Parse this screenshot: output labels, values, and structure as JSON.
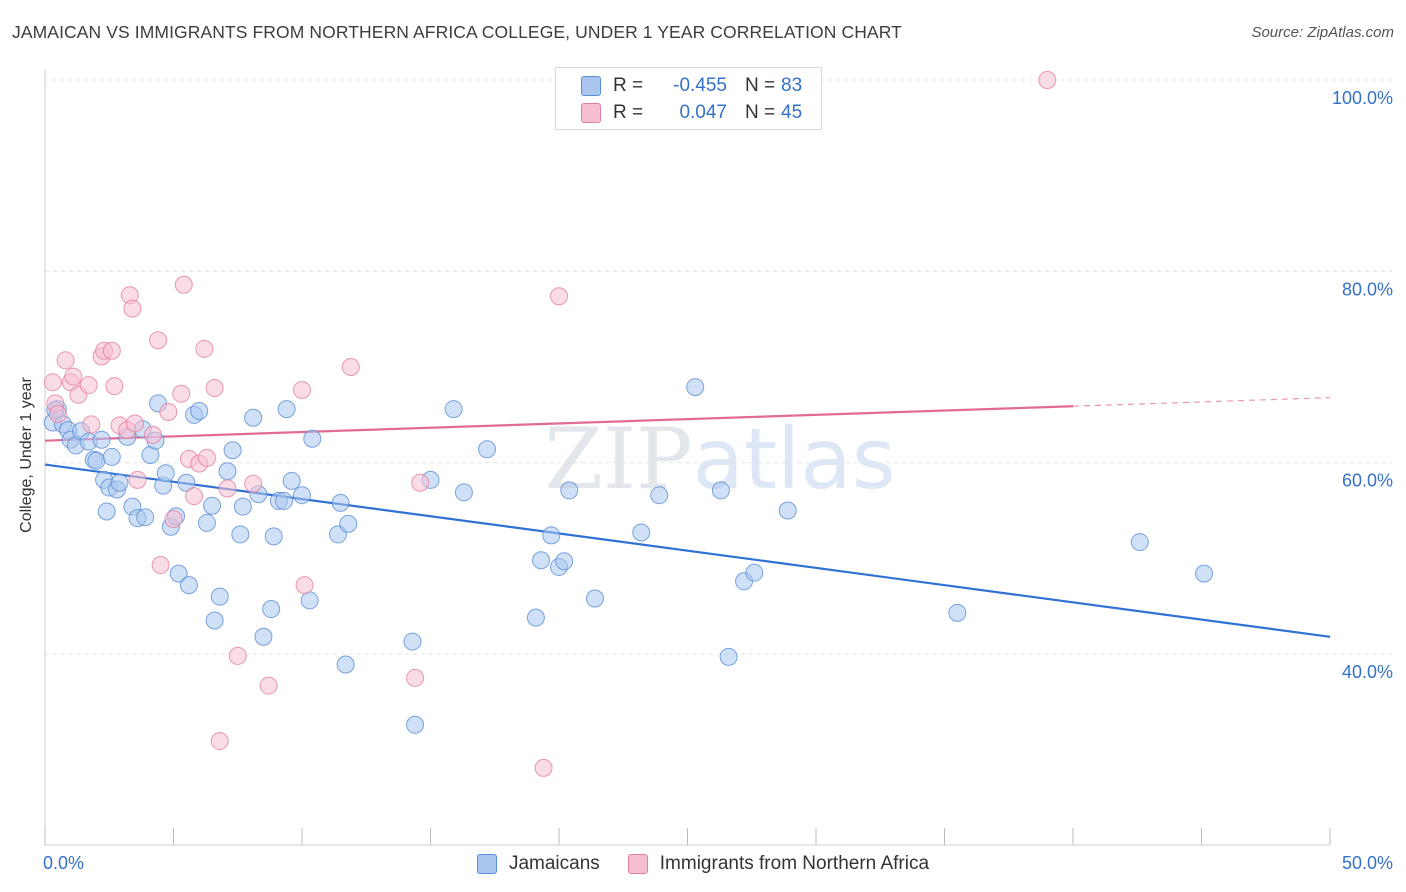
{
  "chart_data": {
    "type": "scatter",
    "title": "JAMAICAN VS IMMIGRANTS FROM NORTHERN AFRICA COLLEGE, UNDER 1 YEAR CORRELATION CHART",
    "source": "Source: ZipAtlas.com",
    "xlabel": "",
    "ylabel": "College, Under 1 year",
    "xlim": [
      0,
      50
    ],
    "ylim": [
      20,
      102
    ],
    "x_tick_labels": [
      "0.0%",
      "50.0%"
    ],
    "y_ticks": [
      40,
      60,
      80,
      100
    ],
    "y_tick_labels": [
      "40.0%",
      "60.0%",
      "80.0%",
      "100.0%"
    ],
    "watermark": "ZIPatlas",
    "legend_stats": [
      {
        "r_label": "R =",
        "r_value": "-0.455",
        "n_label": "N =",
        "n_value": "83"
      },
      {
        "r_label": "R =",
        "r_value": "0.047",
        "n_label": "N =",
        "n_value": "45"
      }
    ],
    "series": [
      {
        "name": "Jamaicans",
        "fill": "#aac6ef",
        "stroke": "#5b8fd6",
        "line_color": "#2f72d4",
        "trend": {
          "x0": 0,
          "y0": 59.8,
          "x1": 50,
          "y1": 41.8
        },
        "points": [
          [
            0.3,
            64.2
          ],
          [
            0.5,
            65.6
          ],
          [
            0.7,
            64.0
          ],
          [
            0.9,
            63.4
          ],
          [
            1.0,
            62.4
          ],
          [
            1.2,
            61.8
          ],
          [
            1.4,
            63.3
          ],
          [
            1.7,
            62.2
          ],
          [
            1.9,
            60.3
          ],
          [
            2.0,
            60.2
          ],
          [
            2.2,
            62.4
          ],
          [
            2.3,
            58.2
          ],
          [
            2.4,
            54.9
          ],
          [
            2.5,
            57.4
          ],
          [
            2.6,
            60.6
          ],
          [
            2.8,
            57.2
          ],
          [
            2.9,
            57.9
          ],
          [
            3.2,
            62.7
          ],
          [
            3.4,
            55.4
          ],
          [
            3.6,
            54.2
          ],
          [
            3.8,
            63.5
          ],
          [
            3.9,
            54.3
          ],
          [
            4.1,
            60.8
          ],
          [
            4.3,
            62.3
          ],
          [
            4.4,
            66.2
          ],
          [
            4.6,
            57.6
          ],
          [
            4.7,
            58.9
          ],
          [
            4.9,
            53.3
          ],
          [
            5.1,
            54.4
          ],
          [
            5.2,
            48.4
          ],
          [
            5.5,
            57.9
          ],
          [
            5.6,
            47.2
          ],
          [
            5.8,
            65.0
          ],
          [
            6.0,
            65.4
          ],
          [
            6.3,
            53.7
          ],
          [
            6.5,
            55.5
          ],
          [
            6.6,
            43.5
          ],
          [
            6.8,
            46.0
          ],
          [
            7.1,
            59.1
          ],
          [
            7.3,
            61.3
          ],
          [
            7.6,
            52.5
          ],
          [
            7.7,
            55.4
          ],
          [
            8.1,
            64.7
          ],
          [
            8.3,
            56.7
          ],
          [
            8.5,
            41.8
          ],
          [
            8.8,
            44.7
          ],
          [
            8.9,
            52.3
          ],
          [
            9.1,
            56.0
          ],
          [
            9.3,
            56.0
          ],
          [
            9.4,
            65.6
          ],
          [
            9.6,
            58.1
          ],
          [
            10.0,
            56.6
          ],
          [
            10.3,
            45.6
          ],
          [
            10.4,
            62.5
          ],
          [
            11.4,
            52.5
          ],
          [
            11.5,
            55.8
          ],
          [
            11.8,
            53.6
          ],
          [
            11.7,
            38.9
          ],
          [
            14.3,
            41.3
          ],
          [
            14.4,
            32.6
          ],
          [
            15.0,
            58.2
          ],
          [
            15.9,
            65.6
          ],
          [
            16.3,
            56.9
          ],
          [
            17.2,
            61.4
          ],
          [
            19.1,
            43.8
          ],
          [
            19.3,
            49.8
          ],
          [
            19.7,
            52.4
          ],
          [
            20.0,
            49.1
          ],
          [
            20.2,
            49.7
          ],
          [
            20.4,
            57.1
          ],
          [
            21.4,
            45.8
          ],
          [
            23.2,
            52.7
          ],
          [
            23.9,
            56.6
          ],
          [
            25.3,
            67.9
          ],
          [
            26.3,
            57.1
          ],
          [
            26.6,
            39.7
          ],
          [
            27.2,
            47.6
          ],
          [
            27.6,
            48.5
          ],
          [
            28.9,
            55.0
          ],
          [
            35.5,
            44.3
          ],
          [
            42.6,
            51.7
          ],
          [
            45.1,
            48.4
          ],
          [
            0.4,
            65.5
          ]
        ]
      },
      {
        "name": "Immigrants from Northern Africa",
        "fill": "#f6bfd1",
        "stroke": "#e37fa2",
        "line_color": "#e26b96",
        "trend": {
          "x0": 0,
          "y0": 62.3,
          "x1": 40,
          "y1": 65.9
        },
        "trend_dashed_to": {
          "x": 50,
          "y": 66.8
        },
        "points": [
          [
            0.3,
            68.4
          ],
          [
            0.4,
            66.2
          ],
          [
            0.5,
            65.1
          ],
          [
            0.8,
            70.7
          ],
          [
            1.0,
            68.4
          ],
          [
            1.1,
            69.0
          ],
          [
            1.3,
            67.1
          ],
          [
            1.7,
            68.1
          ],
          [
            1.8,
            64.0
          ],
          [
            2.2,
            71.1
          ],
          [
            2.3,
            71.7
          ],
          [
            2.6,
            71.7
          ],
          [
            2.7,
            68.0
          ],
          [
            2.9,
            63.9
          ],
          [
            3.2,
            63.4
          ],
          [
            3.3,
            77.5
          ],
          [
            3.4,
            76.1
          ],
          [
            3.5,
            64.1
          ],
          [
            3.6,
            58.2
          ],
          [
            4.2,
            62.9
          ],
          [
            4.4,
            72.8
          ],
          [
            4.5,
            49.3
          ],
          [
            4.8,
            65.3
          ],
          [
            5.0,
            54.1
          ],
          [
            5.3,
            67.2
          ],
          [
            5.4,
            78.6
          ],
          [
            5.6,
            60.4
          ],
          [
            5.8,
            56.5
          ],
          [
            6.0,
            59.9
          ],
          [
            6.2,
            71.9
          ],
          [
            6.3,
            60.5
          ],
          [
            6.6,
            67.8
          ],
          [
            6.8,
            30.9
          ],
          [
            7.1,
            57.3
          ],
          [
            7.5,
            39.8
          ],
          [
            8.1,
            57.8
          ],
          [
            8.7,
            36.7
          ],
          [
            10.0,
            67.6
          ],
          [
            10.1,
            47.2
          ],
          [
            11.9,
            70.0
          ],
          [
            14.4,
            37.5
          ],
          [
            14.6,
            57.9
          ],
          [
            19.4,
            28.1
          ],
          [
            20.0,
            77.4
          ],
          [
            39.0,
            100.0
          ]
        ]
      }
    ]
  }
}
